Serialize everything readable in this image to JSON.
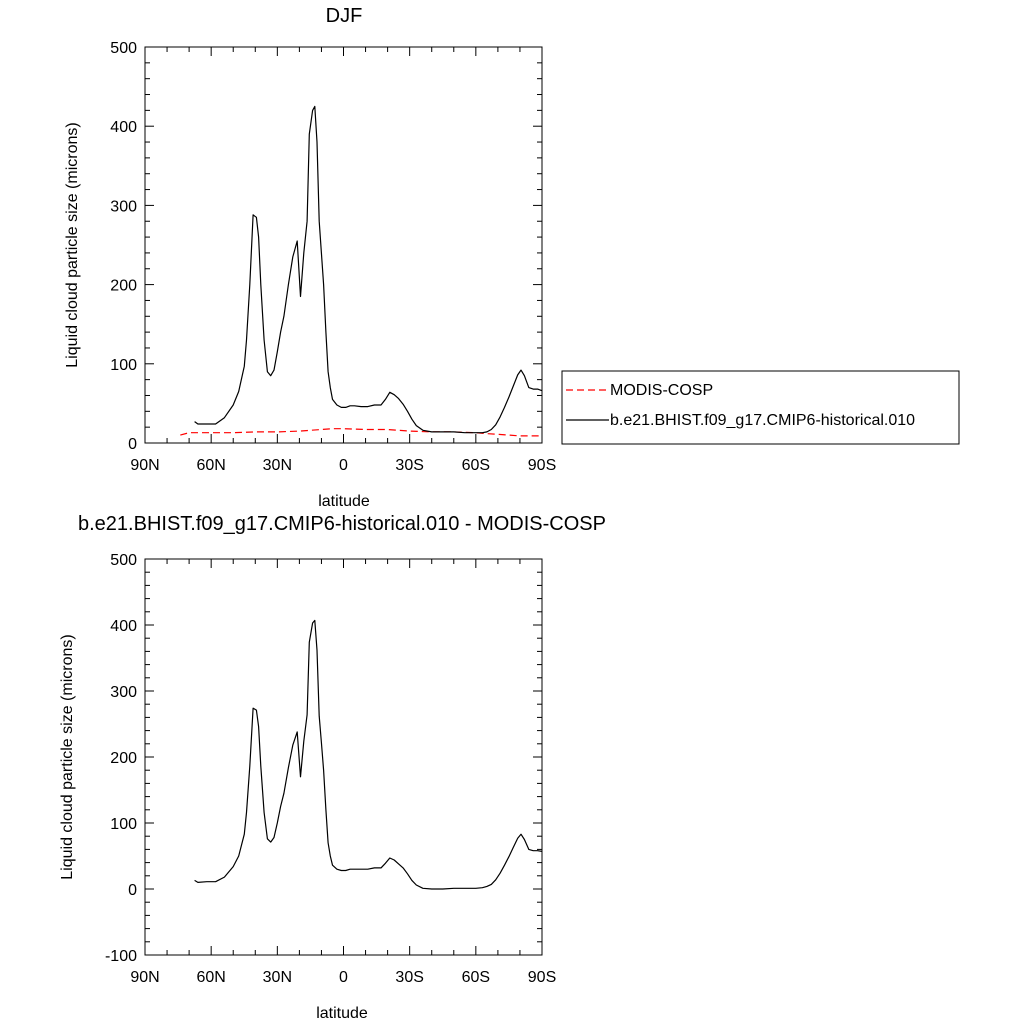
{
  "legend": {
    "placement": "right",
    "items": [
      {
        "label": "MODIS-COSP",
        "color": "#ff0000",
        "dash": "dashed"
      },
      {
        "label": "b.e21.BHIST.f09_g17.CMIP6-historical.010",
        "color": "#000000",
        "dash": "solid"
      }
    ]
  },
  "chart_data": [
    {
      "type": "line",
      "title": "DJF",
      "xlabel": "latitude",
      "ylabel": "Liquid cloud particle size (microns)",
      "xlim": [
        90,
        -90
      ],
      "ylim": [
        0,
        500
      ],
      "xticks": [
        90,
        60,
        30,
        0,
        -30,
        -60,
        -90
      ],
      "xtick_labels": [
        "90N",
        "60N",
        "30N",
        "0",
        "30S",
        "60S",
        "90S"
      ],
      "yticks": [
        0,
        100,
        200,
        300,
        400,
        500
      ],
      "ytick_labels": [
        "0",
        "100",
        "200",
        "300",
        "400",
        "500"
      ],
      "grid": false,
      "series": [
        {
          "name": "MODIS-COSP",
          "color": "#ff0000",
          "dash": "dashed",
          "x": [
            74,
            70,
            60,
            50,
            40,
            30,
            20,
            10,
            5,
            0,
            -10,
            -20,
            -30,
            -40,
            -50,
            -60,
            -64,
            -70,
            -80,
            -90
          ],
          "y": [
            10,
            13,
            13,
            13,
            14,
            14,
            15,
            17,
            18,
            18,
            17,
            17,
            15,
            14,
            14,
            13,
            12,
            11,
            9,
            9
          ]
        },
        {
          "name": "b.e21.BHIST.f09_g17.CMIP6-historical.010",
          "color": "#000000",
          "dash": "solid",
          "x": [
            67.5,
            66,
            62,
            58,
            54,
            50,
            47.5,
            45,
            44,
            42.5,
            41,
            39.5,
            38.5,
            37.5,
            36,
            34.5,
            33,
            31.5,
            30,
            28.5,
            27,
            25,
            23,
            21,
            19.5,
            18,
            16.5,
            15.5,
            14,
            13,
            12,
            11,
            10,
            9,
            8,
            7,
            6,
            5,
            3,
            1,
            -1,
            -3,
            -5,
            -8,
            -11,
            -14,
            -17,
            -19,
            -21,
            -23,
            -25,
            -27,
            -29,
            -31,
            -33,
            -36,
            -40,
            -45,
            -50,
            -55,
            -60,
            -63,
            -65,
            -67,
            -69,
            -71,
            -73,
            -75,
            -77,
            -79,
            -80.5,
            -82,
            -84,
            -86,
            -88,
            -90
          ],
          "y": [
            27,
            24,
            24,
            24,
            32,
            48,
            65,
            97,
            130,
            200,
            288,
            285,
            260,
            200,
            130,
            90,
            85,
            92,
            115,
            140,
            160,
            200,
            235,
            255,
            185,
            240,
            280,
            390,
            420,
            425,
            380,
            280,
            240,
            200,
            140,
            90,
            70,
            55,
            48,
            45,
            45,
            47,
            47,
            46,
            46,
            48,
            48,
            55,
            64,
            61,
            56,
            49,
            40,
            30,
            22,
            16,
            14,
            14,
            14,
            13,
            13,
            13,
            14,
            17,
            23,
            33,
            45,
            58,
            72,
            86,
            92,
            85,
            70,
            68,
            68,
            66
          ]
        }
      ]
    },
    {
      "type": "line",
      "title": "b.e21.BHIST.f09_g17.CMIP6-historical.010 - MODIS-COSP",
      "xlabel": "latitude",
      "ylabel": "Liquid cloud particle size (microns)",
      "xlim": [
        90,
        -90
      ],
      "ylim": [
        -100,
        500
      ],
      "xticks": [
        90,
        60,
        30,
        0,
        -30,
        -60,
        -90
      ],
      "xtick_labels": [
        "90N",
        "60N",
        "30N",
        "0",
        "30S",
        "60S",
        "90S"
      ],
      "yticks": [
        -100,
        0,
        100,
        200,
        300,
        400,
        500
      ],
      "ytick_labels": [
        "-100",
        "0",
        "100",
        "200",
        "300",
        "400",
        "500"
      ],
      "grid": false,
      "series": [
        {
          "name": "b.e21.BHIST.f09_g17.CMIP6-historical.010 - MODIS-COSP",
          "color": "#000000",
          "dash": "solid",
          "x": [
            67.5,
            66,
            62,
            58,
            54,
            50,
            47.5,
            45,
            44,
            42.5,
            41,
            39.5,
            38.5,
            37.5,
            36,
            34.5,
            33,
            31.5,
            30,
            28.5,
            27,
            25,
            23,
            21,
            19.5,
            18,
            16.5,
            15.5,
            14,
            13,
            12,
            11,
            10,
            9,
            8,
            7,
            6,
            5,
            3,
            1,
            -1,
            -3,
            -5,
            -8,
            -11,
            -14,
            -17,
            -19,
            -21,
            -23,
            -25,
            -27,
            -29,
            -31,
            -33,
            -36,
            -40,
            -45,
            -50,
            -55,
            -60,
            -63,
            -65,
            -67,
            -69,
            -71,
            -73,
            -75,
            -77,
            -79,
            -80.5,
            -82,
            -84,
            -86,
            -88,
            -90
          ],
          "y": [
            13,
            10,
            11,
            11,
            18,
            34,
            50,
            83,
            116,
            186,
            274,
            271,
            246,
            186,
            116,
            76,
            71,
            78,
            100,
            125,
            145,
            184,
            218,
            238,
            170,
            224,
            264,
            374,
            403,
            407,
            362,
            262,
            222,
            180,
            120,
            70,
            50,
            36,
            30,
            28,
            28,
            30,
            30,
            30,
            30,
            32,
            32,
            39,
            47,
            44,
            38,
            32,
            23,
            13,
            6,
            1,
            0,
            0,
            1,
            1,
            1,
            2,
            4,
            7,
            14,
            24,
            36,
            49,
            63,
            77,
            83,
            75,
            60,
            58,
            58,
            57
          ]
        }
      ]
    }
  ]
}
